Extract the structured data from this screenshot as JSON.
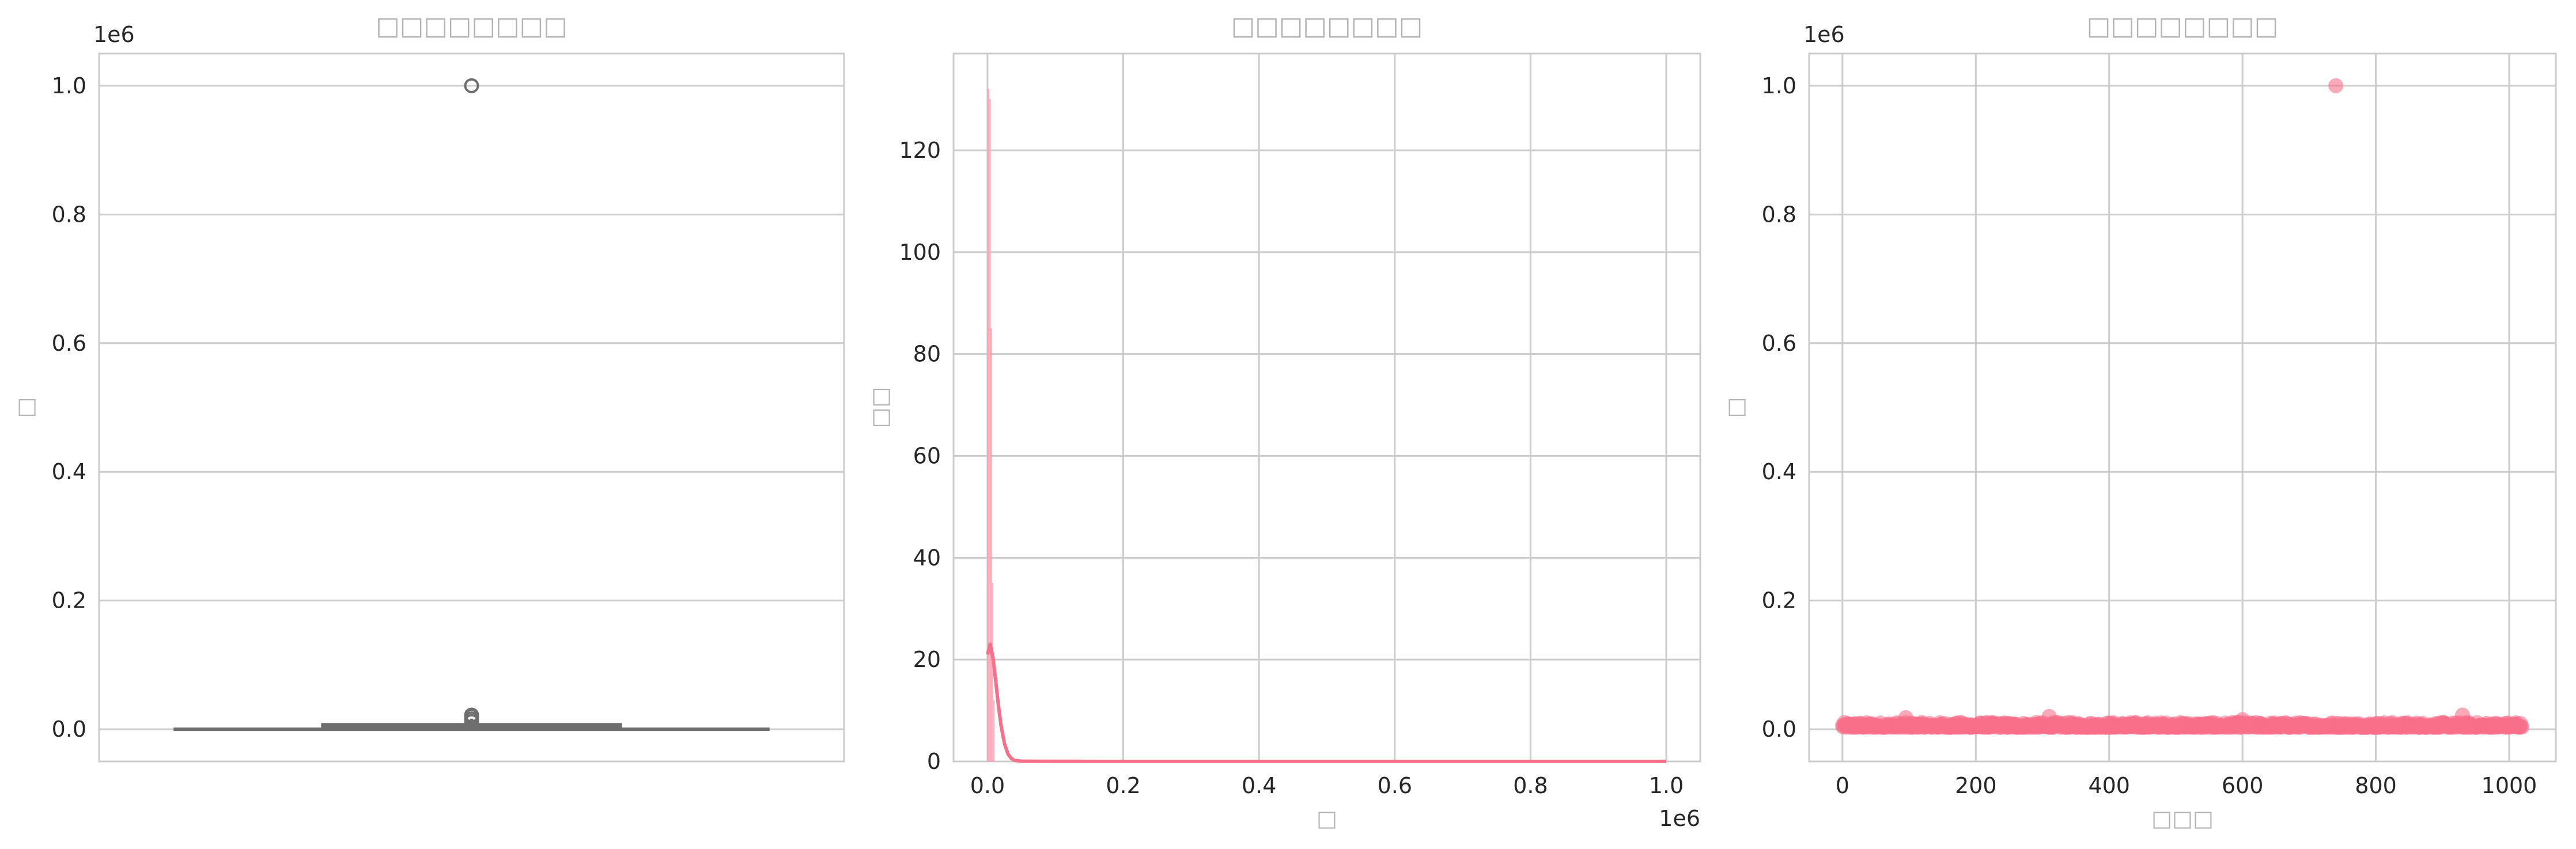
{
  "figure": {
    "background": "#ffffff",
    "accent_color": "#f7708a"
  },
  "chart_data": [
    {
      "type": "box",
      "title": "□□□□□□□□",
      "xlabel": "",
      "ylabel": "□",
      "offset_label": "1e6",
      "ylim": [
        -0.05,
        1.05
      ],
      "yticks": [
        "0.0",
        "0.2",
        "0.4",
        "0.6",
        "0.8",
        "1.0"
      ],
      "ytick_values": [
        0.0,
        0.2,
        0.4,
        0.6,
        0.8,
        1.0
      ],
      "grid": true,
      "box": {
        "whisker_low": 0.0,
        "q1": 0.0025,
        "median": 0.0045,
        "q3": 0.0075,
        "whisker_high": 0.0165
      },
      "outliers": [
        1.0,
        0.012,
        0.016,
        0.02,
        0.022
      ],
      "box_color": "#6e6e6e"
    },
    {
      "type": "histogram",
      "title": "□□□□□□□□",
      "xlabel": "□",
      "ylabel": "□□",
      "offset_label": "1e6",
      "xlim": [
        -0.05,
        1.05
      ],
      "ylim": [
        0,
        139
      ],
      "xticks": [
        "0.0",
        "0.2",
        "0.4",
        "0.6",
        "0.8",
        "1.0"
      ],
      "xtick_values": [
        0.0,
        0.2,
        0.4,
        0.6,
        0.8,
        1.0
      ],
      "yticks": [
        "0",
        "20",
        "40",
        "60",
        "80",
        "100",
        "120"
      ],
      "ytick_values": [
        0,
        20,
        40,
        60,
        80,
        100,
        120
      ],
      "grid": true,
      "bins": [
        {
          "x0": 0.0,
          "x1": 0.002,
          "count": 132
        },
        {
          "x0": 0.002,
          "x1": 0.004,
          "count": 130
        },
        {
          "x0": 0.004,
          "x1": 0.006,
          "count": 85
        },
        {
          "x0": 0.006,
          "x1": 0.008,
          "count": 35
        },
        {
          "x0": 0.008,
          "x1": 0.01,
          "count": 12
        }
      ],
      "kde": {
        "x": [
          0.0,
          0.004,
          0.008,
          0.012,
          0.016,
          0.02,
          0.025,
          0.03,
          0.035,
          0.04,
          0.05,
          0.1,
          0.3,
          0.6,
          1.0
        ],
        "y": [
          21,
          23,
          20.5,
          16,
          11,
          7,
          3.5,
          1.5,
          0.6,
          0.2,
          0.05,
          0.02,
          0.01,
          0.01,
          0.01
        ]
      },
      "bar_color": "#f7a1b1",
      "kde_color": "#f7708a"
    },
    {
      "type": "scatter",
      "title": "□□□□□□□□",
      "xlabel": "□□□",
      "ylabel": "□",
      "offset_label": "1e6",
      "xlim": [
        -50,
        1070
      ],
      "ylim": [
        -0.05,
        1.05
      ],
      "xticks": [
        "0",
        "200",
        "400",
        "600",
        "800",
        "1000"
      ],
      "xtick_values": [
        0,
        200,
        400,
        600,
        800,
        1000
      ],
      "yticks": [
        "0.0",
        "0.2",
        "0.4",
        "0.6",
        "0.8",
        "1.0"
      ],
      "ytick_values": [
        0.0,
        0.2,
        0.4,
        0.6,
        0.8,
        1.0
      ],
      "grid": true,
      "n_points": 1020,
      "outlier_point": {
        "x": 740,
        "y": 1.0
      },
      "typical_range": [
        0.0,
        0.022
      ],
      "highlight_points": [
        {
          "x": 95,
          "y": 0.018
        },
        {
          "x": 310,
          "y": 0.02
        },
        {
          "x": 600,
          "y": 0.015
        },
        {
          "x": 930,
          "y": 0.022
        },
        {
          "x": 1010,
          "y": 0.01
        }
      ],
      "marker_color": "#f7708a"
    }
  ]
}
